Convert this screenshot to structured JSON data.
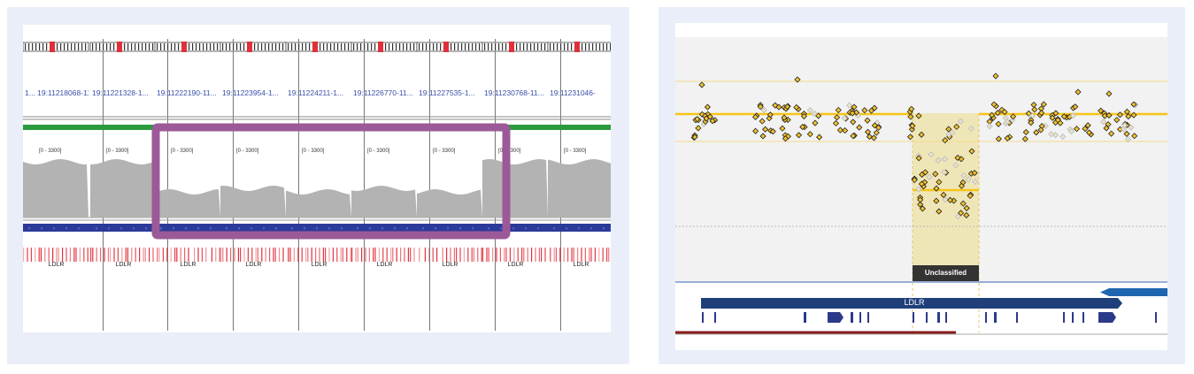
{
  "left_panel": {
    "loci": [
      "1... 19:11218068-11...",
      "19:11221328-1...",
      "19:11222190-11...",
      "19:11223954-1...",
      "19:11224211-1...",
      "19:11226770-11...",
      "19:11227535-1...",
      "19:11230768-11...",
      "19:11231046-"
    ],
    "scale_label": "[0 - 3300]",
    "gene_label": "LDLR",
    "colors": {
      "highlight": "#9b5a97",
      "coverage": "#b3b3b3",
      "green_bar": "#2a9a3e",
      "gene_track": "#2c3a9a",
      "variant": "#e0303a"
    }
  },
  "right_panel": {
    "unclassified_label": "Unclassified",
    "gene_label": "LDLR",
    "colors": {
      "point": "#f2c12e",
      "mean_line": "#f5c518",
      "highlight": "#efe6b8",
      "gene_bar": "#1f3f7a",
      "blue_arrow": "#1f66b0",
      "red_line": "#8a1c1c"
    }
  }
}
